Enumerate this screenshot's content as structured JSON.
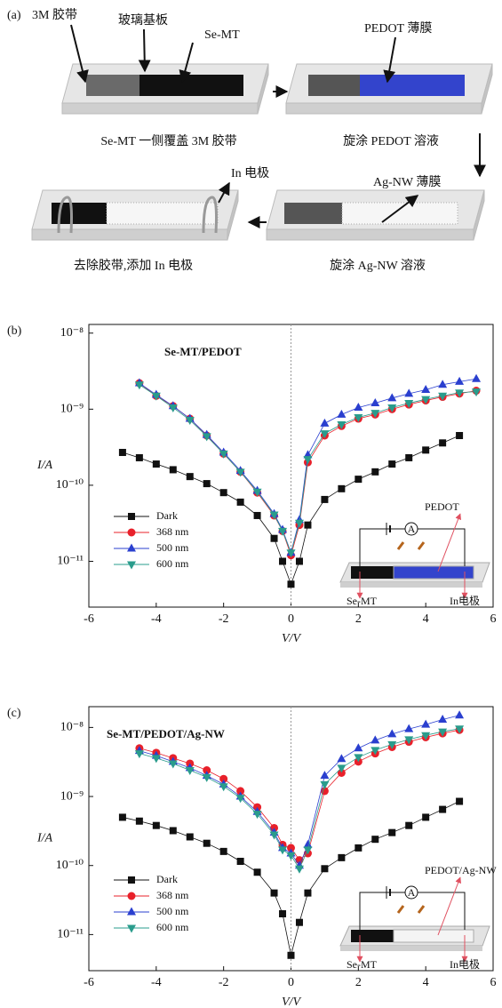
{
  "panel_a": {
    "texts": [
      "(a)",
      "3M 胶带",
      "玻璃基板",
      "Se-MT",
      "PEDOT 薄膜",
      "Se-MT 一侧覆盖 3M 胶带",
      "旋涂 PEDOT 溶液",
      "In 电极",
      "Ag-NW 薄膜",
      "去除胶带,添加 In 电极",
      "旋涂 Ag-NW 溶液"
    ]
  },
  "chart_data": [
    {
      "type": "scatter",
      "panel": "(b)",
      "annotation": "Se-MT/PEDOT",
      "xlabel": "V/V",
      "ylabel": "I/A",
      "log_y": true,
      "legend": "lower left",
      "inset": {
        "film": "PEDOT",
        "left": "Se-MT",
        "right": "In电极",
        "meter": "A"
      },
      "xlim": [
        -6,
        6
      ],
      "xticks": [
        -6,
        -4,
        -2,
        0,
        2,
        4,
        6
      ],
      "ylim": [
        2.5e-12,
        1.3e-08
      ],
      "yticks": [
        {
          "value": 1e-11,
          "label": "10⁻¹¹"
        },
        {
          "value": 1e-10,
          "label": "10⁻¹⁰"
        },
        {
          "value": 1e-09,
          "label": "10⁻⁹"
        },
        {
          "value": 1e-08,
          "label": "10⁻⁸"
        }
      ],
      "x": [
        -5,
        -4.5,
        -4,
        -3.5,
        -3,
        -2.5,
        -2,
        -1.5,
        -1,
        -0.5,
        -0.25,
        0,
        0.25,
        0.5,
        1,
        1.5,
        2,
        2.5,
        3,
        3.5,
        4,
        4.5,
        5,
        5.5
      ],
      "series": [
        {
          "name": "Dark",
          "color": "#111111",
          "marker": "square",
          "values": [
            2.7e-10,
            2.3e-10,
            1.9e-10,
            1.6e-10,
            1.3e-10,
            1.05e-10,
            8e-11,
            6e-11,
            4e-11,
            2e-11,
            1e-11,
            5e-12,
            1e-11,
            3e-11,
            6.5e-11,
            9e-11,
            1.2e-10,
            1.5e-10,
            1.9e-10,
            2.3e-10,
            2.9e-10,
            3.6e-10,
            4.5e-10,
            null
          ]
        },
        {
          "name": "368 nm",
          "color": "#e8202a",
          "marker": "circle",
          "values": [
            null,
            2.2e-09,
            1.5e-09,
            1.1e-09,
            7.5e-10,
            4.5e-10,
            2.6e-10,
            1.5e-10,
            8e-11,
            4e-11,
            2.5e-11,
            1.2e-11,
            3e-11,
            2e-10,
            4.5e-10,
            6e-10,
            7.5e-10,
            8.5e-10,
            1e-09,
            1.15e-09,
            1.3e-09,
            1.45e-09,
            1.6e-09,
            1.75e-09
          ]
        },
        {
          "name": "500 nm",
          "color": "#2a3fcf",
          "marker": "triangle-up",
          "values": [
            null,
            2.2e-09,
            1.55e-09,
            1.1e-09,
            7.5e-10,
            4.6e-10,
            2.7e-10,
            1.55e-10,
            8.5e-11,
            4.2e-11,
            2.6e-11,
            1.3e-11,
            3.5e-11,
            2.5e-10,
            6.5e-10,
            8.5e-10,
            1.05e-09,
            1.2e-09,
            1.4e-09,
            1.6e-09,
            1.8e-09,
            2.1e-09,
            2.3e-09,
            2.5e-09
          ]
        },
        {
          "name": "600 nm",
          "color": "#2a9c8c",
          "marker": "triangle-down",
          "values": [
            null,
            2.1e-09,
            1.5e-09,
            1.05e-09,
            7.2e-10,
            4.4e-10,
            2.6e-10,
            1.5e-10,
            8.2e-11,
            4.1e-11,
            2.5e-11,
            1.3e-11,
            3.2e-11,
            2.2e-10,
            4.8e-10,
            6.3e-10,
            7.8e-10,
            8.9e-10,
            1.05e-09,
            1.2e-09,
            1.35e-09,
            1.5e-09,
            1.65e-09,
            1.7e-09
          ]
        }
      ]
    },
    {
      "type": "scatter",
      "panel": "(c)",
      "annotation": "Se-MT/PEDOT/Ag-NW",
      "xlabel": "V/V",
      "ylabel": "I/A",
      "log_y": true,
      "legend": "lower left",
      "inset": {
        "film": "PEDOT/Ag-NW",
        "left": "Se-MT",
        "right": "In电极",
        "meter": "A"
      },
      "xlim": [
        -6,
        6
      ],
      "xticks": [
        -6,
        -4,
        -2,
        0,
        2,
        4,
        6
      ],
      "ylim": [
        3e-12,
        2e-08
      ],
      "yticks": [
        {
          "value": 1e-11,
          "label": "10⁻¹¹"
        },
        {
          "value": 1e-10,
          "label": "10⁻¹⁰"
        },
        {
          "value": 1e-09,
          "label": "10⁻⁹"
        },
        {
          "value": 1e-08,
          "label": "10⁻⁸"
        }
      ],
      "x": [
        -5,
        -4.5,
        -4,
        -3.5,
        -3,
        -2.5,
        -2,
        -1.5,
        -1,
        -0.5,
        -0.25,
        0,
        0.25,
        0.5,
        1,
        1.5,
        2,
        2.5,
        3,
        3.5,
        4,
        4.5,
        5
      ],
      "series": [
        {
          "name": "Dark",
          "color": "#111111",
          "marker": "square",
          "values": [
            5e-10,
            4.4e-10,
            3.8e-10,
            3.2e-10,
            2.6e-10,
            2.1e-10,
            1.6e-10,
            1.15e-10,
            8e-11,
            4e-11,
            2e-11,
            5e-12,
            1.5e-11,
            4e-11,
            9e-11,
            1.3e-10,
            1.8e-10,
            2.4e-10,
            3e-10,
            3.8e-10,
            5e-10,
            6.5e-10,
            8.5e-10
          ]
        },
        {
          "name": "368 nm",
          "color": "#e8202a",
          "marker": "circle",
          "values": [
            null,
            5e-09,
            4.3e-09,
            3.6e-09,
            3e-09,
            2.4e-09,
            1.8e-09,
            1.2e-09,
            7e-10,
            3.5e-10,
            2e-10,
            1.8e-10,
            1.2e-10,
            1.5e-10,
            1.2e-09,
            2.2e-09,
            3.2e-09,
            4.2e-09,
            5.2e-09,
            6.2e-09,
            7.2e-09,
            8.2e-09,
            9.2e-09
          ]
        },
        {
          "name": "500 nm",
          "color": "#2a3fcf",
          "marker": "triangle-up",
          "values": [
            null,
            4.6e-09,
            3.9e-09,
            3.2e-09,
            2.6e-09,
            2e-09,
            1.5e-09,
            1e-09,
            6e-10,
            3e-10,
            1.8e-10,
            1.5e-10,
            1e-10,
            2e-10,
            2e-09,
            3.5e-09,
            5e-09,
            6.5e-09,
            8e-09,
            9.5e-09,
            1.1e-08,
            1.3e-08,
            1.5e-08
          ]
        },
        {
          "name": "600 nm",
          "color": "#2a9c8c",
          "marker": "triangle-down",
          "values": [
            null,
            4.2e-09,
            3.6e-09,
            3e-09,
            2.4e-09,
            1.9e-09,
            1.4e-09,
            9.5e-10,
            5.6e-10,
            2.8e-10,
            1.7e-10,
            1.4e-10,
            9e-11,
            1.7e-10,
            1.5e-09,
            2.6e-09,
            3.7e-09,
            4.7e-09,
            5.7e-09,
            6.7e-09,
            7.7e-09,
            8.7e-09,
            9.6e-09
          ]
        }
      ]
    }
  ]
}
